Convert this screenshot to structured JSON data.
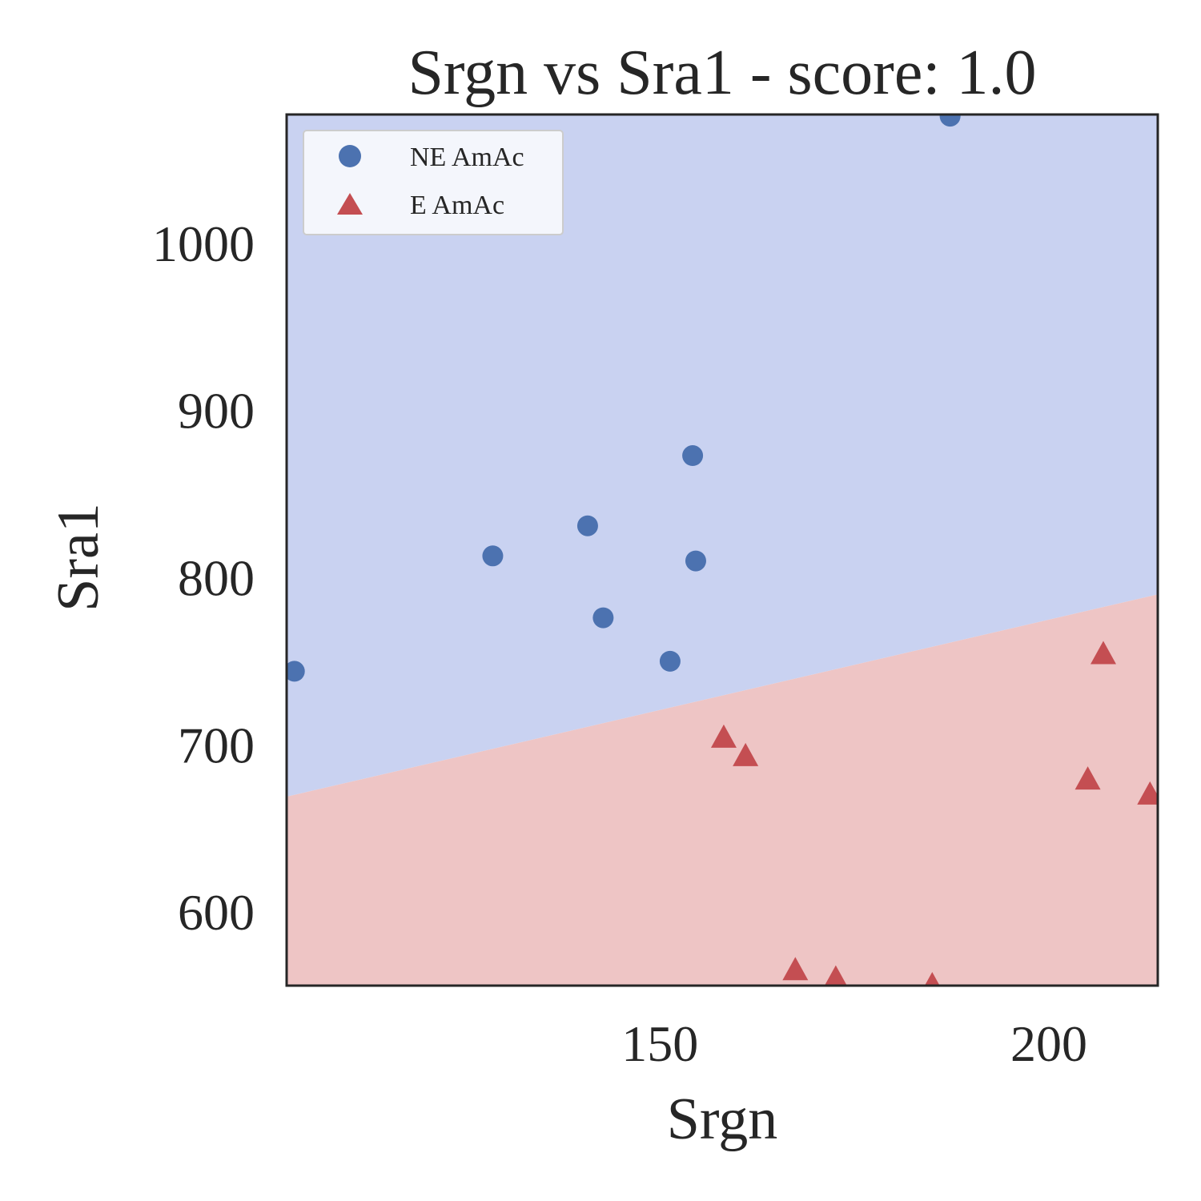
{
  "chart_data": {
    "type": "scatter",
    "title": "Srgn vs Sra1 - score: 1.0",
    "xlabel": "Srgn",
    "ylabel": "Sra1",
    "xlim": [
      102,
      214
    ],
    "ylim": [
      556,
      1077
    ],
    "xticks": [
      150,
      200
    ],
    "yticks": [
      600,
      700,
      800,
      900,
      1000
    ],
    "grid": false,
    "legend_position": "upper left",
    "decision_boundary": {
      "x": [
        102,
        214
      ],
      "y": [
        669,
        790
      ],
      "region_above_color": "#c9d2f1",
      "region_below_color": "#eec5c5"
    },
    "series": [
      {
        "name": "NE AmAc",
        "marker": "circle",
        "color": "#4c72b0",
        "points": [
          {
            "x": 103,
            "y": 744
          },
          {
            "x": 128.5,
            "y": 813
          },
          {
            "x": 140.7,
            "y": 831
          },
          {
            "x": 142.7,
            "y": 776
          },
          {
            "x": 151.3,
            "y": 750
          },
          {
            "x": 154.2,
            "y": 873
          },
          {
            "x": 154.6,
            "y": 810
          },
          {
            "x": 187.3,
            "y": 1076
          }
        ]
      },
      {
        "name": "E AmAc",
        "marker": "triangle",
        "color": "#c44e52",
        "points": [
          {
            "x": 158.2,
            "y": 704
          },
          {
            "x": 161,
            "y": 693
          },
          {
            "x": 167.4,
            "y": 565
          },
          {
            "x": 172.6,
            "y": 560
          },
          {
            "x": 185,
            "y": 556
          },
          {
            "x": 205,
            "y": 679
          },
          {
            "x": 207,
            "y": 754
          },
          {
            "x": 213,
            "y": 670
          }
        ]
      }
    ]
  }
}
